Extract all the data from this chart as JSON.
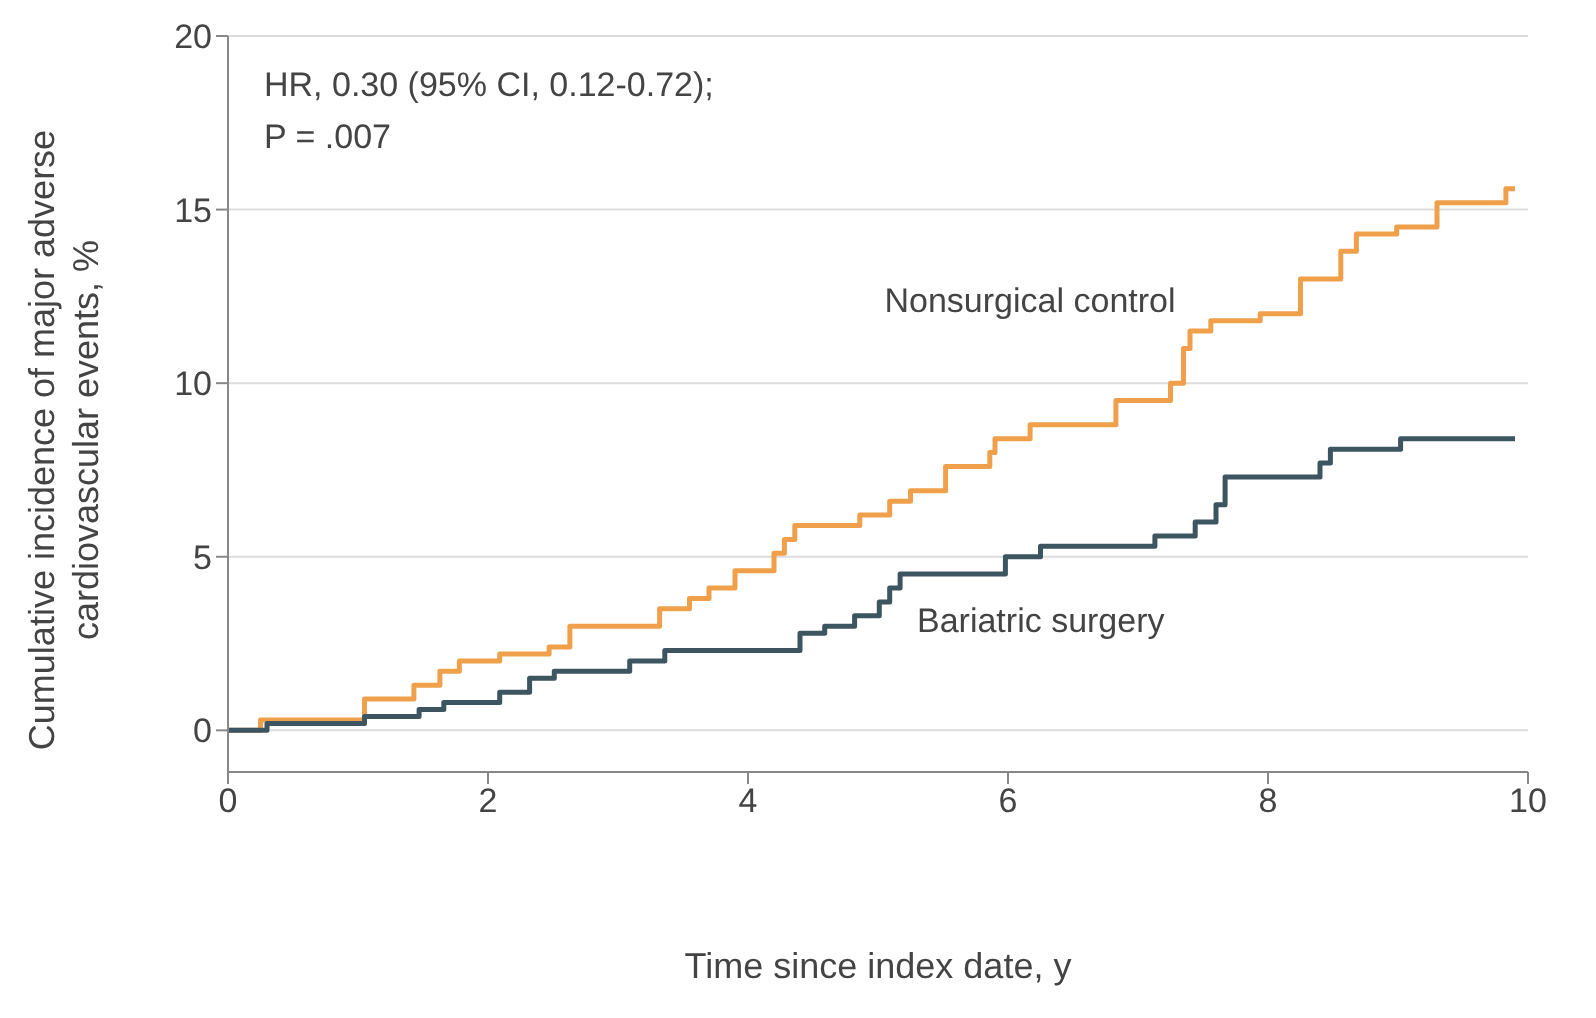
{
  "chart_data": {
    "type": "step",
    "xlabel": "Time since index date, y",
    "ylabel": "Cumulative incidence of major adverse cardiovascular events, %",
    "annotations": [
      "HR, 0.30 (95% CI, 0.12-0.72);",
      "P = .007"
    ],
    "xlim": [
      0,
      10
    ],
    "xticks": [
      0,
      2,
      4,
      6,
      8,
      10
    ],
    "ylim": [
      -1.2,
      20
    ],
    "yticks": [
      0,
      5,
      10,
      15,
      20
    ],
    "grid": "y",
    "marker": "none",
    "line_style": "solid",
    "series": [
      {
        "name": "Nonsurgical control",
        "color": "#f0a04b",
        "x": [
          0,
          0.25,
          1.05,
          1.43,
          1.63,
          1.78,
          2.09,
          2.47,
          2.63,
          3.32,
          3.55,
          3.7,
          3.9,
          4.2,
          4.28,
          4.36,
          4.86,
          5.09,
          5.25,
          5.52,
          5.86,
          5.9,
          6.17,
          6.83,
          7.25,
          7.35,
          7.4,
          7.56,
          7.94,
          8.25,
          8.56,
          8.68,
          8.99,
          9.3,
          9.83,
          9.9
        ],
        "values": [
          0,
          0.3,
          0.9,
          1.3,
          1.7,
          2.0,
          2.2,
          2.4,
          3.0,
          3.5,
          3.8,
          4.1,
          4.6,
          5.1,
          5.5,
          5.9,
          6.2,
          6.6,
          6.9,
          7.6,
          8.0,
          8.4,
          8.8,
          9.5,
          10.0,
          11.0,
          11.5,
          11.8,
          12.0,
          13.0,
          13.8,
          14.3,
          14.5,
          15.2,
          15.6,
          15.6
        ]
      },
      {
        "name": "Bariatric surgery",
        "color": "#3d5560",
        "x": [
          0,
          0.3,
          1.05,
          1.47,
          1.66,
          2.09,
          2.32,
          2.51,
          3.09,
          3.36,
          4.4,
          4.59,
          4.82,
          5.01,
          5.09,
          5.17,
          5.98,
          6.25,
          7.13,
          7.44,
          7.6,
          7.67,
          8.4,
          8.48,
          9.02,
          9.9
        ],
        "values": [
          0,
          0.2,
          0.4,
          0.6,
          0.8,
          1.1,
          1.5,
          1.7,
          2.0,
          2.3,
          2.8,
          3.0,
          3.3,
          3.7,
          4.1,
          4.5,
          5.0,
          5.3,
          5.6,
          6.0,
          6.5,
          7.3,
          7.7,
          8.1,
          8.4,
          8.4
        ]
      }
    ]
  }
}
